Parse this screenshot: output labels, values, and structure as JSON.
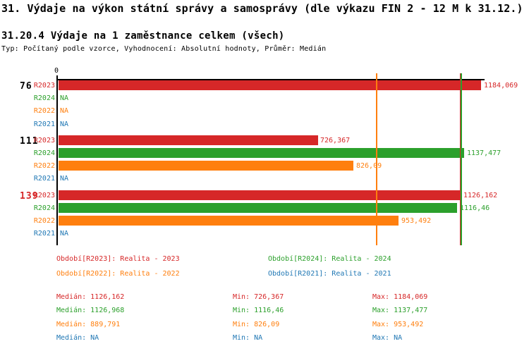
{
  "header": {
    "title": "31. Výdaje na výkon státní správy a samosprávy (dle výkazu FIN 2 - 12 M k 31.12.)",
    "subtitle": "31.20.4 Výdaje na 1 zaměstnance celkem (všech)",
    "meta": "Typ: Počítaný podle vzorce, Vyhodnocení: Absolutní hodnoty, Průměr: Medián"
  },
  "colors": {
    "axis": "#000000",
    "background": "#ffffff",
    "group_label_default": "#000000",
    "group_label_highlight": "#d62728"
  },
  "chart_data": {
    "type": "bar",
    "orientation": "horizontal",
    "axis": {
      "zero_label": "0",
      "max": 1184.069,
      "grid": false
    },
    "na_text": "NA",
    "series_colors": {
      "R2023": "#d62728",
      "R2024": "#2ca02c",
      "R2022": "#ff7f0e",
      "R2021": "#1f77b4"
    },
    "groups": [
      {
        "label": "76",
        "label_color": "#000000",
        "bars": [
          {
            "series": "R2023",
            "value": 1184.069,
            "label": "1184,069"
          },
          {
            "series": "R2024",
            "value": null,
            "label": "NA"
          },
          {
            "series": "R2022",
            "value": null,
            "label": "NA"
          },
          {
            "series": "R2021",
            "value": null,
            "label": "NA"
          }
        ]
      },
      {
        "label": "111",
        "label_color": "#000000",
        "bars": [
          {
            "series": "R2023",
            "value": 726.367,
            "label": "726,367"
          },
          {
            "series": "R2024",
            "value": 1137.477,
            "label": "1137,477"
          },
          {
            "series": "R2022",
            "value": 826.09,
            "label": "826,09"
          },
          {
            "series": "R2021",
            "value": null,
            "label": "NA"
          }
        ]
      },
      {
        "label": "139",
        "label_color": "#d62728",
        "bars": [
          {
            "series": "R2023",
            "value": 1126.162,
            "label": "1126,162"
          },
          {
            "series": "R2024",
            "value": 1116.46,
            "label": "1116,46"
          },
          {
            "series": "R2022",
            "value": 953.492,
            "label": "953,492"
          },
          {
            "series": "R2021",
            "value": null,
            "label": "NA"
          }
        ]
      }
    ],
    "median_lines": [
      {
        "series": "R2022",
        "value": 889.791,
        "color": "#ff7f0e"
      },
      {
        "series": "R2023",
        "value": 1126.162,
        "color": "#d62728"
      },
      {
        "series": "R2024",
        "value": 1126.968,
        "color": "#2ca02c"
      }
    ],
    "legend": [
      {
        "series": "R2023",
        "color": "#d62728",
        "text": "Období[R2023]: Realita - 2023"
      },
      {
        "series": "R2024",
        "color": "#2ca02c",
        "text": "Období[R2024]: Realita - 2024"
      },
      {
        "series": "R2022",
        "color": "#ff7f0e",
        "text": "Období[R2022]: Realita - 2022"
      },
      {
        "series": "R2021",
        "color": "#1f77b4",
        "text": "Období[R2021]: Realita - 2021"
      }
    ],
    "stats": {
      "median_label": "Medián",
      "min_label": "Min",
      "max_label": "Max",
      "rows": [
        {
          "series": "R2023",
          "color": "#d62728",
          "median": "1126,162",
          "min": "726,367",
          "max": "1184,069"
        },
        {
          "series": "R2024",
          "color": "#2ca02c",
          "median": "1126,968",
          "min": "1116,46",
          "max": "1137,477"
        },
        {
          "series": "R2022",
          "color": "#ff7f0e",
          "median": "889,791",
          "min": "826,09",
          "max": "953,492"
        },
        {
          "series": "R2021",
          "color": "#1f77b4",
          "median": "NA",
          "min": "NA",
          "max": "NA"
        }
      ]
    }
  }
}
